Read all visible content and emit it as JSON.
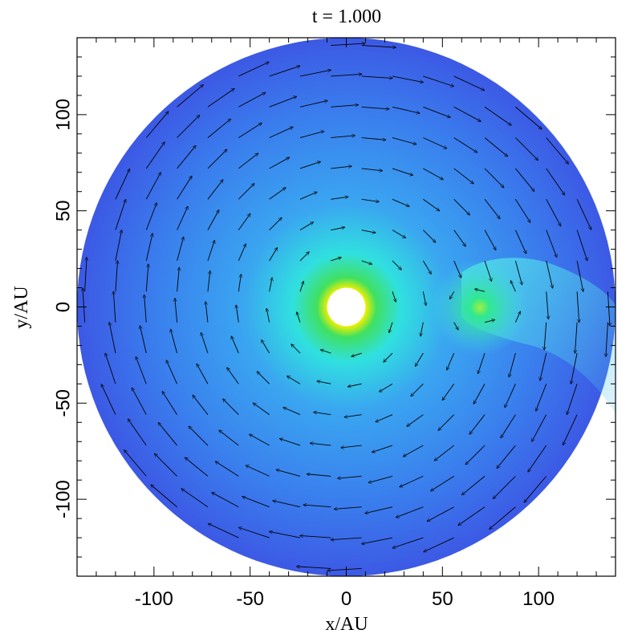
{
  "chart_data": {
    "type": "heatmap",
    "title": "t = 1.000",
    "xlabel": "x/AU",
    "ylabel": "y/AU",
    "xlim": [
      -140,
      140
    ],
    "ylim": [
      -140,
      140
    ],
    "xticks": [
      -100,
      -50,
      0,
      50,
      100
    ],
    "yticks": [
      -100,
      -50,
      0,
      50,
      100
    ],
    "disk_outer_radius": 140,
    "inner_hole_radius": 10,
    "planet": {
      "x": 70,
      "y": 0
    },
    "colormap": [
      "#3c3ce0",
      "#3a86f0",
      "#30e0e0",
      "#40e060",
      "#f0f000",
      "#f08030",
      "#e00000"
    ],
    "overlay": "velocity vector arrows",
    "grid": false,
    "legend": "none"
  }
}
